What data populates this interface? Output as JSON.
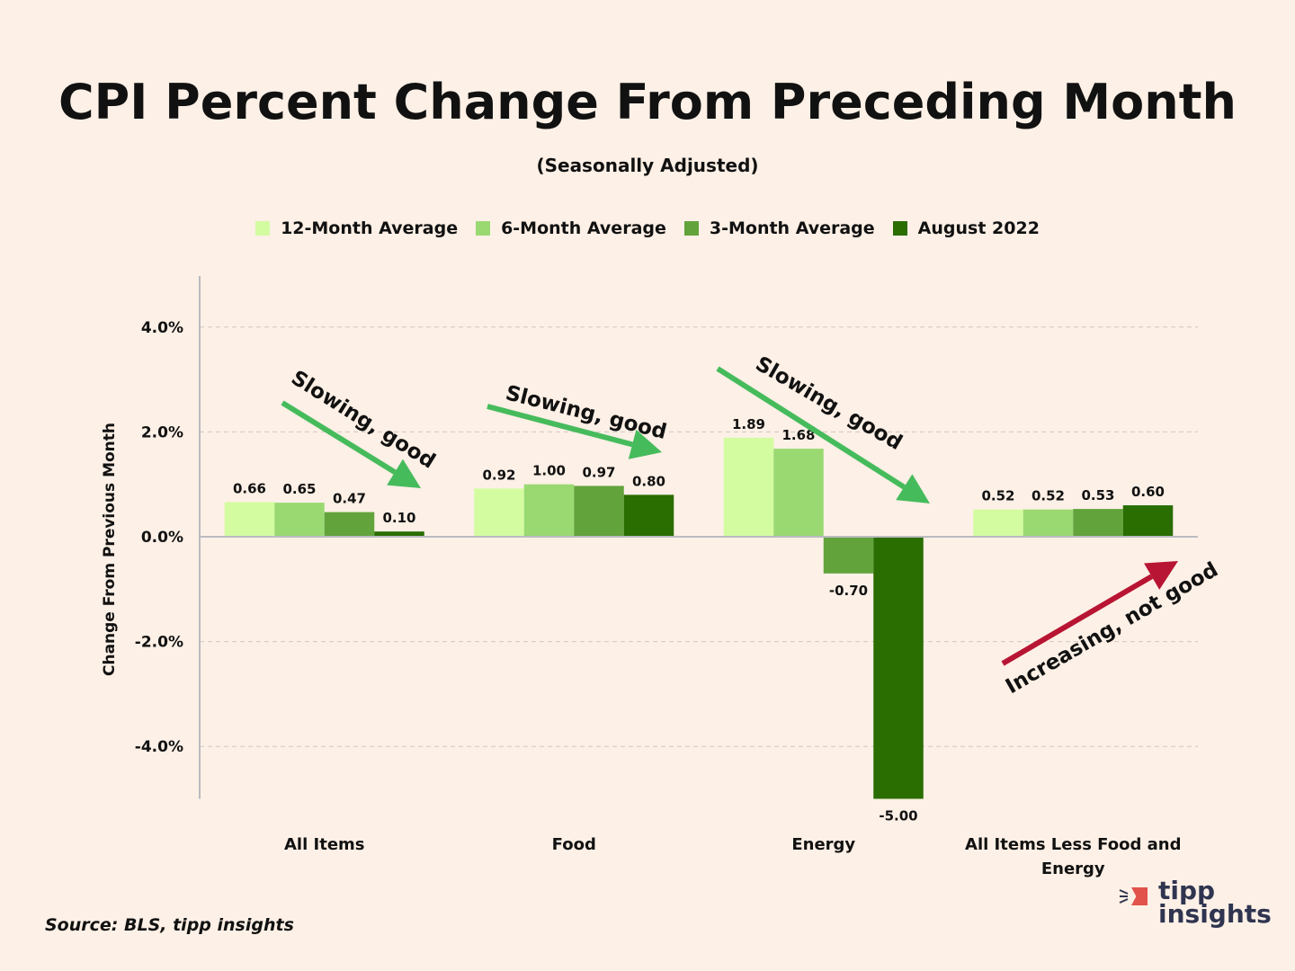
{
  "title": "CPI Percent Change From Preceding Month",
  "subtitle": "(Seasonally Adjusted)",
  "source": "Source: BLS, tipp insights",
  "logo": {
    "line1": "tipp",
    "line2": "insights",
    "accent": "#e0524a",
    "text_color": "#2f3550"
  },
  "chart_data": {
    "type": "bar",
    "title": "CPI Percent Change From Preceding Month",
    "subtitle": "(Seasonally Adjusted)",
    "xlabel": "",
    "ylabel": "Change From Previous Month",
    "ylim": [
      -5,
      5
    ],
    "yticks": [
      4,
      2,
      0,
      -2,
      -4
    ],
    "ytick_labels": [
      "4.0%",
      "2.0%",
      "0.0%",
      "-2.0%",
      "-4.0%"
    ],
    "grid": true,
    "legend_position": "top",
    "categories": [
      "All Items",
      "Food",
      "Energy",
      "All Items Less Food and Energy"
    ],
    "series": [
      {
        "name": "12-Month Average",
        "color": "#d3fca0",
        "values": [
          0.66,
          0.92,
          1.89,
          0.52
        ],
        "labels": [
          "0.66",
          "0.92",
          "1.89",
          "0.52"
        ]
      },
      {
        "name": "6-Month Average",
        "color": "#9ad972",
        "values": [
          0.65,
          1.0,
          1.68,
          0.52
        ],
        "labels": [
          "0.65",
          "1.00",
          "1.68",
          "0.52"
        ]
      },
      {
        "name": "3-Month Average",
        "color": "#62a33c",
        "values": [
          0.47,
          0.97,
          -0.7,
          0.53
        ],
        "labels": [
          "0.47",
          "0.97",
          "-0.70",
          "0.53"
        ]
      },
      {
        "name": "August 2022",
        "color": "#2a6d00",
        "values": [
          0.1,
          0.8,
          -5.0,
          0.6
        ],
        "labels": [
          "0.10",
          "0.80",
          "-5.00",
          "0.60"
        ]
      }
    ],
    "annotations": [
      {
        "text": "Slowing, good",
        "category": "All Items",
        "direction": "down",
        "color": "#46bb5c"
      },
      {
        "text": "Slowing, good",
        "category": "Food",
        "direction": "down",
        "color": "#46bb5c"
      },
      {
        "text": "Slowing, good",
        "category": "Energy",
        "direction": "down",
        "color": "#46bb5c"
      },
      {
        "text": "Increasing, not good",
        "category": "All Items Less Food and Energy",
        "direction": "up",
        "color": "#b81433"
      }
    ]
  }
}
